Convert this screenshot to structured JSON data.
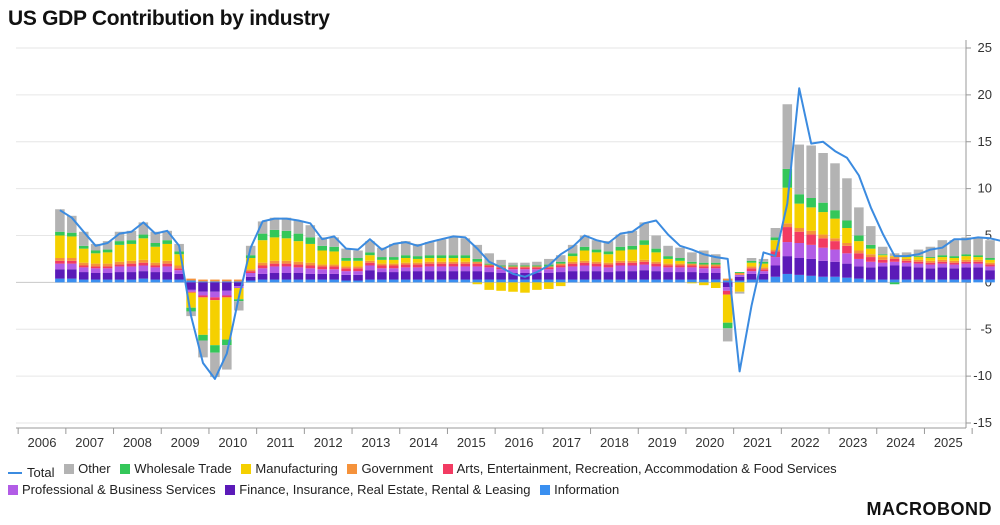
{
  "chart_data": {
    "type": "bar",
    "title": "US GDP Contribution by industry",
    "stacked": true,
    "overlay_line": "Total",
    "y_axis_position": "right",
    "ylim": [
      -15,
      25
    ],
    "yticks": [
      -15,
      -10,
      -5,
      0,
      5,
      10,
      15,
      20,
      25
    ],
    "x_labels": [
      "2006",
      "2007",
      "2008",
      "2009",
      "2010",
      "2011",
      "2012",
      "2013",
      "2014",
      "2015",
      "2016",
      "2017",
      "2018",
      "2019",
      "2020",
      "2021",
      "2022",
      "2023",
      "2024",
      "2025"
    ],
    "x_start": "2005 Q4",
    "frequency": "quarterly",
    "grid": "horizontal",
    "legend_position": "bottom",
    "series_meta": [
      {
        "name": "Total",
        "color": "#3b8be0",
        "kind": "line"
      },
      {
        "name": "Other",
        "color": "#b3b3b3",
        "kind": "bar"
      },
      {
        "name": "Wholesale Trade",
        "color": "#34c759",
        "kind": "bar"
      },
      {
        "name": "Manufacturing",
        "color": "#f5d000",
        "kind": "bar"
      },
      {
        "name": "Government",
        "color": "#f5923b",
        "kind": "bar"
      },
      {
        "name": "Arts, Entertainment, Recreation, Accommodation & Food Services",
        "color": "#f23b62",
        "kind": "bar"
      },
      {
        "name": "Professional & Business Services",
        "color": "#b25ce6",
        "kind": "bar"
      },
      {
        "name": "Finance, Insurance, Real Estate, Rental & Leasing",
        "color": "#5b1ab8",
        "kind": "bar"
      },
      {
        "name": "Information",
        "color": "#3a8ff0",
        "kind": "bar"
      }
    ],
    "stack_order": [
      "Information",
      "Finance, Insurance, Real Estate, Rental & Leasing",
      "Professional & Business Services",
      "Arts, Entertainment, Recreation, Accommodation & Food Services",
      "Government",
      "Manufacturing",
      "Wholesale Trade",
      "Other"
    ],
    "periods": [
      {
        "info": 0.4,
        "fin": 1.0,
        "prof": 0.6,
        "arts": 0.3,
        "gov": 0.3,
        "mfg": 2.4,
        "whole": 0.4,
        "other": 2.4
      },
      {
        "info": 0.4,
        "fin": 1.0,
        "prof": 0.6,
        "arts": 0.3,
        "gov": 0.3,
        "mfg": 2.3,
        "whole": 0.4,
        "other": 1.8
      },
      {
        "info": 0.3,
        "fin": 0.8,
        "prof": 0.5,
        "arts": 0.2,
        "gov": 0.3,
        "mfg": 1.5,
        "whole": 0.3,
        "other": 1.5
      },
      {
        "info": 0.3,
        "fin": 0.7,
        "prof": 0.5,
        "arts": 0.2,
        "gov": 0.3,
        "mfg": 1.1,
        "whole": 0.3,
        "other": 0.7
      },
      {
        "info": 0.3,
        "fin": 0.7,
        "prof": 0.5,
        "arts": 0.2,
        "gov": 0.3,
        "mfg": 1.2,
        "whole": 0.3,
        "other": 0.9
      },
      {
        "info": 0.3,
        "fin": 0.8,
        "prof": 0.6,
        "arts": 0.2,
        "gov": 0.3,
        "mfg": 1.8,
        "whole": 0.4,
        "other": 1.0
      },
      {
        "info": 0.3,
        "fin": 0.8,
        "prof": 0.6,
        "arts": 0.3,
        "gov": 0.3,
        "mfg": 1.8,
        "whole": 0.4,
        "other": 1.0
      },
      {
        "info": 0.4,
        "fin": 0.8,
        "prof": 0.6,
        "arts": 0.3,
        "gov": 0.3,
        "mfg": 2.3,
        "whole": 0.4,
        "other": 1.3
      },
      {
        "info": 0.3,
        "fin": 0.8,
        "prof": 0.5,
        "arts": 0.2,
        "gov": 0.3,
        "mfg": 1.7,
        "whole": 0.4,
        "other": 1.2
      },
      {
        "info": 0.3,
        "fin": 0.8,
        "prof": 0.6,
        "arts": 0.3,
        "gov": 0.3,
        "mfg": 1.8,
        "whole": 0.4,
        "other": 1.0
      },
      {
        "info": 0.3,
        "fin": 0.6,
        "prof": 0.4,
        "arts": 0.2,
        "gov": 0.3,
        "mfg": 1.2,
        "whole": 0.3,
        "other": 0.8
      },
      {
        "info": 0.2,
        "fin": -0.8,
        "prof": -0.2,
        "arts": -0.1,
        "gov": 0.2,
        "mfg": -1.6,
        "whole": -0.4,
        "other": -0.5
      },
      {
        "info": 0.1,
        "fin": -1.0,
        "prof": -0.4,
        "arts": -0.2,
        "gov": 0.2,
        "mfg": -4.0,
        "whole": -0.6,
        "other": -1.8
      },
      {
        "info": 0.1,
        "fin": -1.0,
        "prof": -0.6,
        "arts": -0.3,
        "gov": 0.2,
        "mfg": -4.8,
        "whole": -0.8,
        "other": -2.6
      },
      {
        "info": 0.1,
        "fin": -0.9,
        "prof": -0.5,
        "arts": -0.2,
        "gov": 0.2,
        "mfg": -4.5,
        "whole": -0.6,
        "other": -2.6
      },
      {
        "info": 0.1,
        "fin": -0.4,
        "prof": -0.2,
        "arts": 0.0,
        "gov": 0.2,
        "mfg": -1.2,
        "whole": -0.2,
        "other": -1.0
      },
      {
        "info": 0.2,
        "fin": 0.4,
        "prof": 0.4,
        "arts": 0.2,
        "gov": 0.2,
        "mfg": 1.2,
        "whole": 0.3,
        "other": 1.0
      },
      {
        "info": 0.3,
        "fin": 0.6,
        "prof": 0.6,
        "arts": 0.3,
        "gov": 0.3,
        "mfg": 2.4,
        "whole": 0.7,
        "other": 1.3
      },
      {
        "info": 0.3,
        "fin": 0.7,
        "prof": 0.7,
        "arts": 0.3,
        "gov": 0.3,
        "mfg": 2.5,
        "whole": 0.8,
        "other": 1.3
      },
      {
        "info": 0.3,
        "fin": 0.7,
        "prof": 0.7,
        "arts": 0.3,
        "gov": 0.3,
        "mfg": 2.4,
        "whole": 0.8,
        "other": 1.4
      },
      {
        "info": 0.3,
        "fin": 0.7,
        "prof": 0.6,
        "arts": 0.3,
        "gov": 0.3,
        "mfg": 2.2,
        "whole": 0.8,
        "other": 1.4
      },
      {
        "info": 0.3,
        "fin": 0.6,
        "prof": 0.6,
        "arts": 0.3,
        "gov": 0.3,
        "mfg": 2.0,
        "whole": 0.7,
        "other": 1.3
      },
      {
        "info": 0.3,
        "fin": 0.6,
        "prof": 0.5,
        "arts": 0.3,
        "gov": 0.2,
        "mfg": 1.5,
        "whole": 0.5,
        "other": 0.9
      },
      {
        "info": 0.3,
        "fin": 0.6,
        "prof": 0.5,
        "arts": 0.3,
        "gov": 0.2,
        "mfg": 1.4,
        "whole": 0.5,
        "other": 1.0
      },
      {
        "info": 0.2,
        "fin": 0.6,
        "prof": 0.4,
        "arts": 0.3,
        "gov": 0.2,
        "mfg": 0.6,
        "whole": 0.3,
        "other": 1.0
      },
      {
        "info": 0.2,
        "fin": 0.6,
        "prof": 0.4,
        "arts": 0.3,
        "gov": 0.2,
        "mfg": 0.6,
        "whole": 0.3,
        "other": 0.8
      },
      {
        "info": 0.3,
        "fin": 1.0,
        "prof": 0.5,
        "arts": 0.3,
        "gov": 0.2,
        "mfg": 0.6,
        "whole": 0.3,
        "other": 1.2
      },
      {
        "info": 0.3,
        "fin": 0.8,
        "prof": 0.4,
        "arts": 0.3,
        "gov": 0.2,
        "mfg": 0.4,
        "whole": 0.3,
        "other": 1.0
      },
      {
        "info": 0.3,
        "fin": 0.8,
        "prof": 0.4,
        "arts": 0.3,
        "gov": 0.2,
        "mfg": 0.4,
        "whole": 0.3,
        "other": 1.4
      },
      {
        "info": 0.3,
        "fin": 0.9,
        "prof": 0.4,
        "arts": 0.3,
        "gov": 0.2,
        "mfg": 0.5,
        "whole": 0.3,
        "other": 1.5
      },
      {
        "info": 0.3,
        "fin": 0.9,
        "prof": 0.4,
        "arts": 0.3,
        "gov": 0.2,
        "mfg": 0.4,
        "whole": 0.3,
        "other": 1.3
      },
      {
        "info": 0.3,
        "fin": 0.9,
        "prof": 0.5,
        "arts": 0.3,
        "gov": 0.2,
        "mfg": 0.4,
        "whole": 0.3,
        "other": 1.4
      },
      {
        "info": 0.3,
        "fin": 0.9,
        "prof": 0.5,
        "arts": 0.3,
        "gov": 0.2,
        "mfg": 0.4,
        "whole": 0.3,
        "other": 1.7
      },
      {
        "info": 0.3,
        "fin": 0.9,
        "prof": 0.5,
        "arts": 0.3,
        "gov": 0.2,
        "mfg": 0.4,
        "whole": 0.3,
        "other": 1.9
      },
      {
        "info": 0.3,
        "fin": 0.9,
        "prof": 0.5,
        "arts": 0.3,
        "gov": 0.2,
        "mfg": 0.4,
        "whole": 0.3,
        "other": 1.8
      },
      {
        "info": 0.3,
        "fin": 0.9,
        "prof": 0.5,
        "arts": 0.3,
        "gov": 0.2,
        "mfg": -0.2,
        "whole": 0.3,
        "other": 1.5
      },
      {
        "info": 0.3,
        "fin": 0.8,
        "prof": 0.5,
        "arts": 0.2,
        "gov": 0.1,
        "mfg": -0.8,
        "whole": 0.1,
        "other": 1.1
      },
      {
        "info": 0.3,
        "fin": 0.7,
        "prof": 0.4,
        "arts": 0.2,
        "gov": 0.1,
        "mfg": -0.9,
        "whole": 0.1,
        "other": 0.6
      },
      {
        "info": 0.3,
        "fin": 0.7,
        "prof": 0.4,
        "arts": 0.2,
        "gov": 0.1,
        "mfg": -1.0,
        "whole": 0.1,
        "other": 0.3
      },
      {
        "info": 0.3,
        "fin": 0.7,
        "prof": 0.4,
        "arts": 0.2,
        "gov": 0.1,
        "mfg": -1.1,
        "whole": 0.1,
        "other": 0.3
      },
      {
        "info": 0.3,
        "fin": 0.7,
        "prof": 0.4,
        "arts": 0.2,
        "gov": 0.1,
        "mfg": -0.8,
        "whole": 0.1,
        "other": 0.4
      },
      {
        "info": 0.3,
        "fin": 0.7,
        "prof": 0.4,
        "arts": 0.2,
        "gov": 0.1,
        "mfg": -0.7,
        "whole": 0.2,
        "other": 0.6
      },
      {
        "info": 0.3,
        "fin": 0.8,
        "prof": 0.5,
        "arts": 0.2,
        "gov": 0.2,
        "mfg": -0.4,
        "whole": 0.2,
        "other": 0.7
      },
      {
        "info": 0.3,
        "fin": 0.9,
        "prof": 0.5,
        "arts": 0.3,
        "gov": 0.2,
        "mfg": 0.6,
        "whole": 0.3,
        "other": 0.9
      },
      {
        "info": 0.3,
        "fin": 0.9,
        "prof": 0.6,
        "arts": 0.3,
        "gov": 0.2,
        "mfg": 1.1,
        "whole": 0.4,
        "other": 1.2
      },
      {
        "info": 0.3,
        "fin": 0.9,
        "prof": 0.5,
        "arts": 0.3,
        "gov": 0.2,
        "mfg": 1.0,
        "whole": 0.3,
        "other": 1.0
      },
      {
        "info": 0.3,
        "fin": 0.8,
        "prof": 0.5,
        "arts": 0.3,
        "gov": 0.2,
        "mfg": 0.9,
        "whole": 0.3,
        "other": 1.1
      },
      {
        "info": 0.3,
        "fin": 0.9,
        "prof": 0.6,
        "arts": 0.3,
        "gov": 0.2,
        "mfg": 1.1,
        "whole": 0.4,
        "other": 1.3
      },
      {
        "info": 0.3,
        "fin": 0.9,
        "prof": 0.6,
        "arts": 0.3,
        "gov": 0.2,
        "mfg": 1.2,
        "whole": 0.4,
        "other": 1.6
      },
      {
        "info": 0.3,
        "fin": 1.0,
        "prof": 0.6,
        "arts": 0.3,
        "gov": 0.2,
        "mfg": 1.6,
        "whole": 0.5,
        "other": 1.9
      },
      {
        "info": 0.3,
        "fin": 0.9,
        "prof": 0.5,
        "arts": 0.3,
        "gov": 0.2,
        "mfg": 1.0,
        "whole": 0.4,
        "other": 1.4
      },
      {
        "info": 0.3,
        "fin": 0.8,
        "prof": 0.5,
        "arts": 0.2,
        "gov": 0.2,
        "mfg": 0.5,
        "whole": 0.3,
        "other": 1.1
      },
      {
        "info": 0.3,
        "fin": 0.8,
        "prof": 0.5,
        "arts": 0.2,
        "gov": 0.2,
        "mfg": 0.3,
        "whole": 0.3,
        "other": 1.1
      },
      {
        "info": 0.3,
        "fin": 0.8,
        "prof": 0.5,
        "arts": 0.2,
        "gov": 0.2,
        "mfg": -0.1,
        "whole": 0.2,
        "other": 1.0
      },
      {
        "info": 0.3,
        "fin": 0.7,
        "prof": 0.5,
        "arts": 0.2,
        "gov": 0.2,
        "mfg": -0.3,
        "whole": 0.2,
        "other": 1.3
      },
      {
        "info": 0.3,
        "fin": 0.7,
        "prof": 0.5,
        "arts": 0.2,
        "gov": 0.2,
        "mfg": -0.6,
        "whole": 0.2,
        "other": 0.9
      },
      {
        "info": 0.2,
        "fin": -0.5,
        "prof": -0.4,
        "arts": -0.4,
        "gov": 0.2,
        "mfg": -3.0,
        "whole": -0.6,
        "other": -1.4
      },
      {
        "info": 0.2,
        "fin": 0.4,
        "prof": 0.2,
        "arts": 0.0,
        "gov": 0.2,
        "mfg": -1.0,
        "whole": 0.1,
        "other": -0.2
      },
      {
        "info": 0.3,
        "fin": 0.6,
        "prof": 0.3,
        "arts": 0.3,
        "gov": 0.2,
        "mfg": 0.4,
        "whole": 0.2,
        "other": 0.3
      },
      {
        "info": 0.3,
        "fin": 0.6,
        "prof": 0.3,
        "arts": 0.2,
        "gov": 0.2,
        "mfg": 0.4,
        "whole": 0.2,
        "other": 0.3
      },
      {
        "info": 0.6,
        "fin": 1.2,
        "prof": 0.9,
        "arts": 0.6,
        "gov": 0.2,
        "mfg": 1.0,
        "whole": 0.3,
        "other": 1.0
      },
      {
        "info": 0.9,
        "fin": 1.9,
        "prof": 1.5,
        "arts": 1.6,
        "gov": 0.4,
        "mfg": 3.8,
        "whole": 2.0,
        "other": 6.9
      },
      {
        "info": 0.8,
        "fin": 1.8,
        "prof": 1.6,
        "arts": 1.2,
        "gov": 0.4,
        "mfg": 2.6,
        "whole": 1.0,
        "other": 5.3
      },
      {
        "info": 0.7,
        "fin": 1.8,
        "prof": 1.5,
        "arts": 1.1,
        "gov": 0.4,
        "mfg": 2.5,
        "whole": 1.0,
        "other": 5.6
      },
      {
        "info": 0.6,
        "fin": 1.7,
        "prof": 1.4,
        "arts": 1.0,
        "gov": 0.4,
        "mfg": 2.4,
        "whole": 1.0,
        "other": 5.3
      },
      {
        "info": 0.6,
        "fin": 1.6,
        "prof": 1.3,
        "arts": 0.9,
        "gov": 0.3,
        "mfg": 2.1,
        "whole": 0.9,
        "other": 5.0
      },
      {
        "info": 0.5,
        "fin": 1.5,
        "prof": 1.1,
        "arts": 0.8,
        "gov": 0.3,
        "mfg": 1.6,
        "whole": 0.8,
        "other": 4.5
      },
      {
        "info": 0.4,
        "fin": 1.3,
        "prof": 0.8,
        "arts": 0.6,
        "gov": 0.3,
        "mfg": 1.0,
        "whole": 0.6,
        "other": 3.0
      },
      {
        "info": 0.3,
        "fin": 1.3,
        "prof": 0.6,
        "arts": 0.5,
        "gov": 0.3,
        "mfg": 0.6,
        "whole": 0.4,
        "other": 2.0
      },
      {
        "info": 0.3,
        "fin": 1.4,
        "prof": 0.4,
        "arts": 0.3,
        "gov": 0.3,
        "mfg": 0.2,
        "whole": 0.1,
        "other": 0.8
      },
      {
        "info": 0.3,
        "fin": 1.5,
        "prof": 0.4,
        "arts": 0.3,
        "gov": 0.2,
        "mfg": 0.1,
        "whole": -0.2,
        "other": 0.3
      },
      {
        "info": 0.3,
        "fin": 1.4,
        "prof": 0.4,
        "arts": 0.2,
        "gov": 0.2,
        "mfg": 0.2,
        "whole": 0.1,
        "other": 0.4
      },
      {
        "info": 0.3,
        "fin": 1.3,
        "prof": 0.4,
        "arts": 0.2,
        "gov": 0.2,
        "mfg": 0.3,
        "whole": 0.1,
        "other": 0.7
      },
      {
        "info": 0.3,
        "fin": 1.2,
        "prof": 0.4,
        "arts": 0.2,
        "gov": 0.2,
        "mfg": 0.3,
        "whole": 0.1,
        "other": 1.1
      },
      {
        "info": 0.3,
        "fin": 1.3,
        "prof": 0.4,
        "arts": 0.2,
        "gov": 0.2,
        "mfg": 0.3,
        "whole": 0.2,
        "other": 1.6
      },
      {
        "info": 0.3,
        "fin": 1.2,
        "prof": 0.4,
        "arts": 0.2,
        "gov": 0.2,
        "mfg": 0.3,
        "whole": 0.2,
        "other": 1.7
      },
      {
        "info": 0.3,
        "fin": 1.3,
        "prof": 0.4,
        "arts": 0.2,
        "gov": 0.2,
        "mfg": 0.4,
        "whole": 0.2,
        "other": 1.8
      },
      {
        "info": 0.3,
        "fin": 1.3,
        "prof": 0.4,
        "arts": 0.2,
        "gov": 0.2,
        "mfg": 0.3,
        "whole": 0.2,
        "other": 1.8
      },
      {
        "info": 0.3,
        "fin": 1.0,
        "prof": 0.4,
        "arts": 0.2,
        "gov": 0.2,
        "mfg": 0.3,
        "whole": 0.2,
        "other": 1.9
      }
    ],
    "total": [
      7.7,
      6.9,
      5.4,
      3.9,
      4.2,
      5.2,
      5.4,
      6.4,
      5.2,
      5.5,
      3.9,
      -3.6,
      -8.6,
      -10.3,
      -7.6,
      -1.6,
      3.7,
      6.5,
      6.8,
      6.8,
      6.6,
      6.3,
      4.6,
      4.9,
      3.6,
      3.5,
      4.6,
      3.5,
      4.1,
      4.3,
      3.9,
      4.3,
      4.6,
      4.9,
      4.8,
      3.6,
      2.2,
      1.6,
      0.9,
      0.6,
      1.1,
      1.8,
      3.0,
      3.8,
      5.0,
      4.5,
      4.2,
      5.2,
      5.4,
      6.3,
      6.6,
      5.1,
      3.9,
      3.5,
      3.0,
      2.7,
      2.5,
      -9.5,
      -2.5,
      3.2,
      2.8,
      8.4,
      20.7,
      14.8,
      15.0,
      14.0,
      13.3,
      11.4,
      8.0,
      5.2,
      2.8,
      2.8,
      3.0,
      3.5,
      3.7,
      4.6,
      4.6,
      4.8,
      4.7,
      4.4
    ]
  },
  "legend": {
    "total": "Total",
    "other": "Other",
    "wholesale": "Wholesale Trade",
    "manufacturing": "Manufacturing",
    "government": "Government",
    "arts": "Arts, Entertainment, Recreation, Accommodation & Food Services",
    "professional": "Professional & Business Services",
    "finance": "Finance, Insurance, Real Estate, Rental & Leasing",
    "information": "Information"
  },
  "brand": "MACROBOND"
}
